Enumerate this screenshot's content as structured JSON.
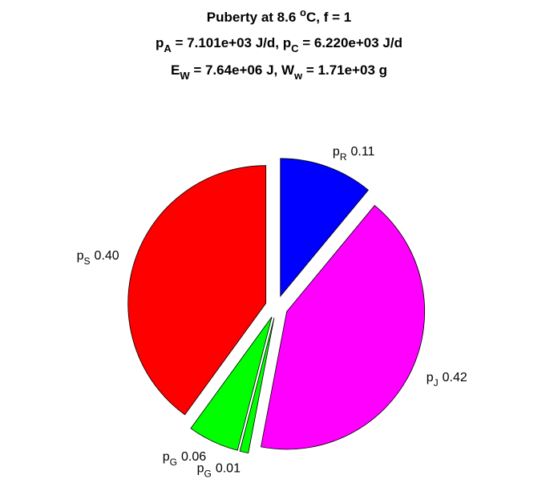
{
  "chart_data": {
    "type": "pie",
    "title": [
      [
        {
          "text": "Puberty at 8.6 "
        },
        {
          "text": "o",
          "shift": "sup"
        },
        {
          "text": "C, f = 1"
        }
      ],
      [
        {
          "text": "p"
        },
        {
          "text": "A",
          "shift": "sub"
        },
        {
          "text": " = 7.101e+03 J/d,  p"
        },
        {
          "text": "C",
          "shift": "sub"
        },
        {
          "text": " = 6.220e+03 J/d"
        }
      ],
      [
        {
          "text": "E"
        },
        {
          "text": "W",
          "shift": "sub"
        },
        {
          "text": " = 7.64e+06 J, W"
        },
        {
          "text": "w",
          "shift": "sub"
        },
        {
          "text": " = 1.71e+03 g"
        }
      ]
    ],
    "categories": [
      {
        "base": "p",
        "sub": "R"
      },
      {
        "base": "p",
        "sub": "J"
      },
      {
        "base": "p",
        "sub": "G"
      },
      {
        "base": "p",
        "sub": "G"
      },
      {
        "base": "p",
        "sub": "S"
      }
    ],
    "values": [
      0.11,
      0.42,
      0.01,
      0.06,
      0.4
    ],
    "value_labels": [
      "0.11",
      "0.42",
      "0.01",
      "0.06",
      "0.40"
    ],
    "colors": [
      "#0000ff",
      "#ff00ff",
      "#00ff00",
      "#00ff00",
      "#ff0000"
    ],
    "exploded": true
  }
}
